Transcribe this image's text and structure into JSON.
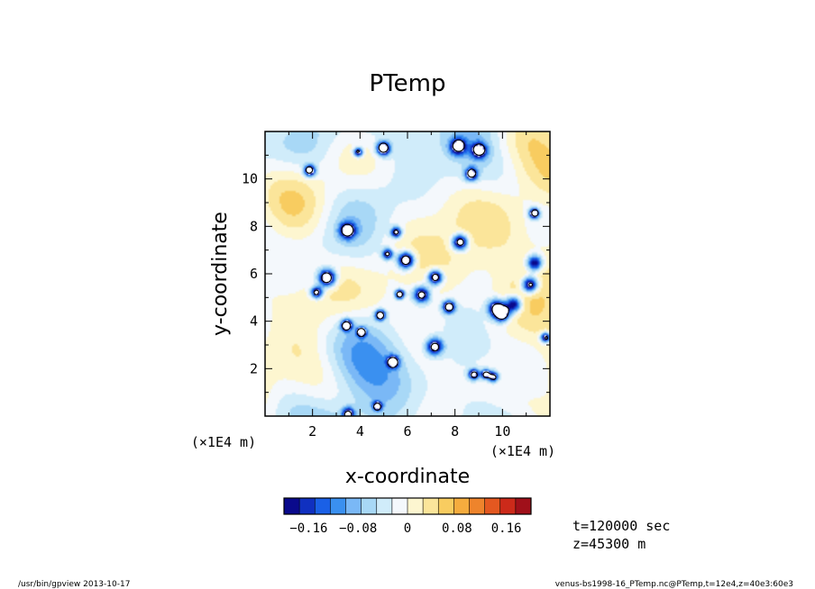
{
  "chart_data": {
    "type": "heatmap",
    "title": "PTemp",
    "xlabel": "x-coordinate",
    "ylabel": "y-coordinate",
    "x_unit": "(×1E4 m)",
    "y_unit": "(×1E4 m)",
    "xlim": [
      0,
      12
    ],
    "ylim": [
      0,
      12
    ],
    "x_ticks": [
      "2",
      "4",
      "6",
      "8",
      "10"
    ],
    "y_ticks": [
      "2",
      "4",
      "6",
      "8",
      "10"
    ],
    "colorbar": {
      "range": [
        -0.2,
        0.2
      ],
      "tick_labels": [
        "−0.16",
        "−0.08",
        "0",
        "0.08",
        "0.16"
      ],
      "tick_values": [
        -0.16,
        -0.08,
        0,
        0.08,
        0.16
      ],
      "colors": [
        "#0a0a8c",
        "#1030c0",
        "#1a60e6",
        "#3a90f0",
        "#7ab8f6",
        "#a8d8f6",
        "#d0ecfa",
        "#f4f8fc",
        "#fdf6d0",
        "#fbe59a",
        "#f8cc60",
        "#f5ac3e",
        "#ee842c",
        "#e45820",
        "#cc2a1a",
        "#a0101a"
      ]
    },
    "annotations": {
      "time": "t=120000 sec",
      "height": "z=45300 m"
    },
    "contour_level": -0.2,
    "grid": false
  },
  "footer": {
    "left": "/usr/bin/gpview   2013-10-17",
    "right": "venus-bs1998-16_PTemp.nc@PTemp,t=12e4,z=40e3:60e3"
  }
}
